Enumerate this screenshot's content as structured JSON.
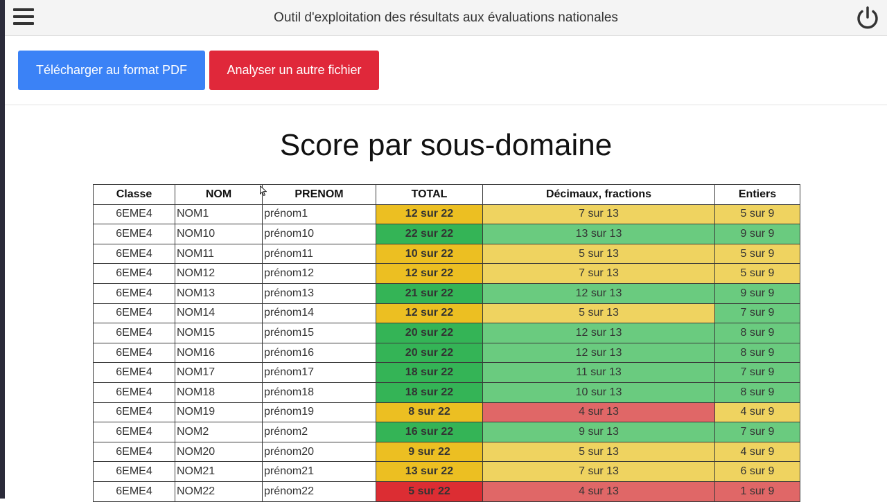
{
  "header": {
    "title": "Outil d'exploitation des résultats aux évaluations nationales",
    "menu_icon": "hamburger-menu-icon",
    "power_icon": "power-icon"
  },
  "actions": {
    "download_pdf_label": "Télécharger au format PDF",
    "analyze_other_label": "Analyser un autre fichier"
  },
  "page_title": "Score par sous-domaine",
  "colors": {
    "blue_button": "#3b82f6",
    "red_button": "#e0283a",
    "good": "#6acb7f",
    "medium": "#efd360",
    "low": "#e06767",
    "total_good": "#34b456",
    "total_medium": "#ecbf22",
    "total_low": "#dc2d33"
  },
  "table": {
    "columns": [
      "Classe",
      "NOM",
      "PRENOM",
      "TOTAL",
      "Décimaux, fractions",
      "Entiers"
    ],
    "rows": [
      {
        "classe": "6EME4",
        "nom": "NOM1",
        "prenom": "prénom1",
        "total": "12 sur 22",
        "total_level": "y",
        "decimaux": "7 sur 13",
        "decimaux_level": "y",
        "entiers": "5 sur 9",
        "entiers_level": "y"
      },
      {
        "classe": "6EME4",
        "nom": "NOM10",
        "prenom": "prénom10",
        "total": "22 sur 22",
        "total_level": "g",
        "decimaux": "13 sur 13",
        "decimaux_level": "g",
        "entiers": "9 sur 9",
        "entiers_level": "g"
      },
      {
        "classe": "6EME4",
        "nom": "NOM11",
        "prenom": "prénom11",
        "total": "10 sur 22",
        "total_level": "y",
        "decimaux": "5 sur 13",
        "decimaux_level": "y",
        "entiers": "5 sur 9",
        "entiers_level": "y"
      },
      {
        "classe": "6EME4",
        "nom": "NOM12",
        "prenom": "prénom12",
        "total": "12 sur 22",
        "total_level": "y",
        "decimaux": "7 sur 13",
        "decimaux_level": "y",
        "entiers": "5 sur 9",
        "entiers_level": "y"
      },
      {
        "classe": "6EME4",
        "nom": "NOM13",
        "prenom": "prénom13",
        "total": "21 sur 22",
        "total_level": "g",
        "decimaux": "12 sur 13",
        "decimaux_level": "g",
        "entiers": "9 sur 9",
        "entiers_level": "g"
      },
      {
        "classe": "6EME4",
        "nom": "NOM14",
        "prenom": "prénom14",
        "total": "12 sur 22",
        "total_level": "y",
        "decimaux": "5 sur 13",
        "decimaux_level": "y",
        "entiers": "7 sur 9",
        "entiers_level": "g"
      },
      {
        "classe": "6EME4",
        "nom": "NOM15",
        "prenom": "prénom15",
        "total": "20 sur 22",
        "total_level": "g",
        "decimaux": "12 sur 13",
        "decimaux_level": "g",
        "entiers": "8 sur 9",
        "entiers_level": "g"
      },
      {
        "classe": "6EME4",
        "nom": "NOM16",
        "prenom": "prénom16",
        "total": "20 sur 22",
        "total_level": "g",
        "decimaux": "12 sur 13",
        "decimaux_level": "g",
        "entiers": "8 sur 9",
        "entiers_level": "g"
      },
      {
        "classe": "6EME4",
        "nom": "NOM17",
        "prenom": "prénom17",
        "total": "18 sur 22",
        "total_level": "g",
        "decimaux": "11 sur 13",
        "decimaux_level": "g",
        "entiers": "7 sur 9",
        "entiers_level": "g"
      },
      {
        "classe": "6EME4",
        "nom": "NOM18",
        "prenom": "prénom18",
        "total": "18 sur 22",
        "total_level": "g",
        "decimaux": "10 sur 13",
        "decimaux_level": "g",
        "entiers": "8 sur 9",
        "entiers_level": "g"
      },
      {
        "classe": "6EME4",
        "nom": "NOM19",
        "prenom": "prénom19",
        "total": "8 sur 22",
        "total_level": "y",
        "decimaux": "4 sur 13",
        "decimaux_level": "r",
        "entiers": "4 sur 9",
        "entiers_level": "y"
      },
      {
        "classe": "6EME4",
        "nom": "NOM2",
        "prenom": "prénom2",
        "total": "16 sur 22",
        "total_level": "g",
        "decimaux": "9 sur 13",
        "decimaux_level": "g",
        "entiers": "7 sur 9",
        "entiers_level": "g"
      },
      {
        "classe": "6EME4",
        "nom": "NOM20",
        "prenom": "prénom20",
        "total": "9 sur 22",
        "total_level": "y",
        "decimaux": "5 sur 13",
        "decimaux_level": "y",
        "entiers": "4 sur 9",
        "entiers_level": "y"
      },
      {
        "classe": "6EME4",
        "nom": "NOM21",
        "prenom": "prénom21",
        "total": "13 sur 22",
        "total_level": "y",
        "decimaux": "7 sur 13",
        "decimaux_level": "y",
        "entiers": "6 sur 9",
        "entiers_level": "y"
      },
      {
        "classe": "6EME4",
        "nom": "NOM22",
        "prenom": "prénom22",
        "total": "5 sur 22",
        "total_level": "r",
        "decimaux": "4 sur 13",
        "decimaux_level": "r",
        "entiers": "1 sur 9",
        "entiers_level": "r"
      }
    ]
  }
}
